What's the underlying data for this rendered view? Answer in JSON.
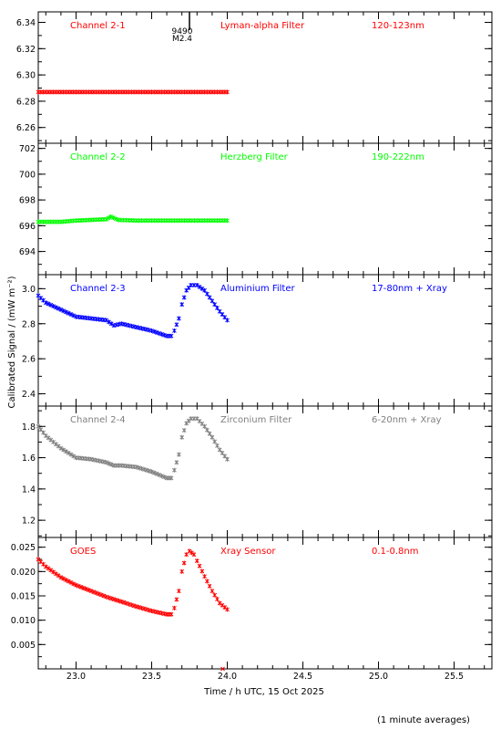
{
  "figure": {
    "ylabel": "Calibrated Signal / (mW m⁻²)",
    "xlabel": "Time / h UTC, 15 Oct 2025",
    "footnote": "(1 minute averages)",
    "flare_marker": {
      "time": 23.75,
      "id": "9490",
      "class": "M2.4"
    }
  },
  "chart_data": [
    {
      "type": "scatter",
      "channel": "Channel 2-1",
      "filter": "Lyman-alpha Filter",
      "band": "120-123nm",
      "color": "#ff0000",
      "ylim": [
        6.248,
        6.348
      ],
      "yticks": [
        6.26,
        6.28,
        6.3,
        6.32,
        6.34
      ],
      "ytick_labels": [
        "6.26",
        "6.28",
        "6.30",
        "6.32",
        "6.34"
      ],
      "x": [
        22.75,
        23.0,
        23.25,
        23.5,
        23.75,
        24.0
      ],
      "y": [
        6.287,
        6.287,
        6.287,
        6.287,
        6.287,
        6.287
      ]
    },
    {
      "type": "scatter",
      "channel": "Channel 2-2",
      "filter": "Herzberg Filter",
      "band": "190-222nm",
      "color": "#00ff00",
      "ylim": [
        692.2,
        702.4
      ],
      "yticks": [
        694,
        696,
        698,
        700,
        702
      ],
      "ytick_labels": [
        "694",
        "696",
        "698",
        "700",
        "702"
      ],
      "x": [
        22.75,
        22.9,
        23.0,
        23.1,
        23.2,
        23.23,
        23.28,
        23.4,
        23.6,
        23.8,
        24.0
      ],
      "y": [
        696.3,
        696.3,
        696.4,
        696.45,
        696.5,
        696.7,
        696.45,
        696.4,
        696.4,
        696.4,
        696.4
      ]
    },
    {
      "type": "scatter",
      "channel": "Channel 2-3",
      "filter": "Aluminium Filter",
      "band": "17-80nm + Xray",
      "color": "#0000ff",
      "ylim": [
        2.33,
        3.08
      ],
      "yticks": [
        2.4,
        2.6,
        2.8,
        3.0
      ],
      "ytick_labels": [
        "2.4",
        "2.6",
        "2.8",
        "3.0"
      ],
      "x": [
        22.75,
        22.8,
        22.9,
        23.0,
        23.1,
        23.2,
        23.25,
        23.3,
        23.4,
        23.5,
        23.6,
        23.63,
        23.65,
        23.68,
        23.7,
        23.73,
        23.76,
        23.8,
        23.85,
        23.9,
        23.95,
        24.0
      ],
      "y": [
        2.96,
        2.92,
        2.88,
        2.84,
        2.83,
        2.82,
        2.79,
        2.8,
        2.78,
        2.76,
        2.73,
        2.73,
        2.76,
        2.83,
        2.91,
        2.99,
        3.02,
        3.02,
        2.99,
        2.93,
        2.87,
        2.82
      ]
    },
    {
      "type": "scatter",
      "channel": "Channel 2-4",
      "filter": "Zirconium Filter",
      "band": "6-20nm + Xray",
      "color": "#808080",
      "ylim": [
        1.09,
        1.93
      ],
      "yticks": [
        1.2,
        1.4,
        1.6,
        1.8
      ],
      "ytick_labels": [
        "1.2",
        "1.4",
        "1.6",
        "1.8"
      ],
      "x": [
        22.75,
        22.8,
        22.9,
        23.0,
        23.1,
        23.2,
        23.25,
        23.3,
        23.4,
        23.5,
        23.6,
        23.63,
        23.65,
        23.68,
        23.7,
        23.73,
        23.76,
        23.8,
        23.85,
        23.9,
        23.95,
        24.0
      ],
      "y": [
        1.8,
        1.74,
        1.66,
        1.6,
        1.59,
        1.57,
        1.55,
        1.55,
        1.54,
        1.51,
        1.47,
        1.47,
        1.52,
        1.62,
        1.73,
        1.82,
        1.85,
        1.85,
        1.8,
        1.73,
        1.65,
        1.59
      ]
    },
    {
      "type": "scatter",
      "channel": "GOES",
      "filter": "Xray Sensor",
      "band": "0.1-0.8nm",
      "color": "#ff0000",
      "ylim": [
        0.0,
        0.027
      ],
      "yticks": [
        0.005,
        0.01,
        0.015,
        0.02,
        0.025
      ],
      "ytick_labels": [
        "0.005",
        "0.010",
        "0.015",
        "0.020",
        "0.025"
      ],
      "x": [
        22.75,
        22.8,
        22.9,
        23.0,
        23.1,
        23.2,
        23.3,
        23.4,
        23.5,
        23.6,
        23.63,
        23.65,
        23.68,
        23.7,
        23.73,
        23.75,
        23.78,
        23.8,
        23.85,
        23.9,
        23.95,
        24.0
      ],
      "y": [
        0.0225,
        0.021,
        0.0188,
        0.0172,
        0.016,
        0.0148,
        0.0138,
        0.0128,
        0.0119,
        0.0112,
        0.0112,
        0.0125,
        0.016,
        0.02,
        0.0235,
        0.0242,
        0.0235,
        0.0222,
        0.019,
        0.016,
        0.0135,
        0.0122
      ],
      "outlier": {
        "x": 23.97,
        "y": 0.0
      }
    }
  ],
  "x_axis": {
    "xlim": [
      22.75,
      25.75
    ],
    "ticks": [
      23.0,
      23.5,
      24.0,
      24.5,
      25.0,
      25.5
    ],
    "tick_labels": [
      "23.0",
      "23.5",
      "24.0",
      "24.5",
      "25.0",
      "25.5"
    ]
  }
}
